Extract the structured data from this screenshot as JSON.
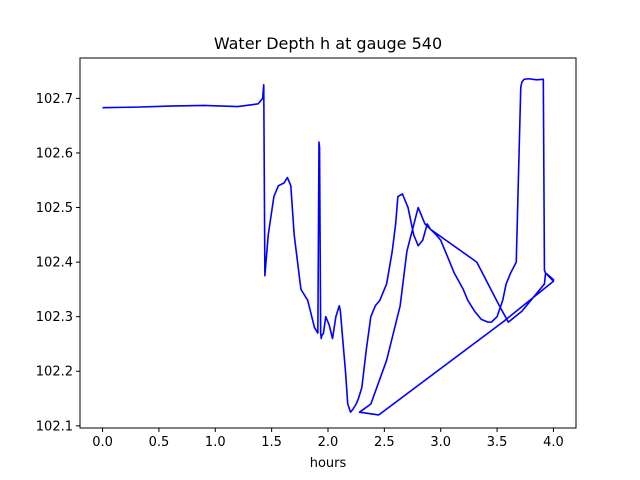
{
  "chart_data": {
    "type": "line",
    "title": "Water Depth h at gauge 540",
    "xlabel": "hours",
    "ylabel": "",
    "xlim": [
      -0.2,
      4.2
    ],
    "ylim": [
      102.096,
      102.774
    ],
    "grid": false,
    "x_ticks": [
      0.0,
      0.5,
      1.0,
      1.5,
      2.0,
      2.5,
      3.0,
      3.5,
      4.0
    ],
    "x_tick_labels": [
      "0.0",
      "0.5",
      "1.0",
      "1.5",
      "2.0",
      "2.5",
      "3.0",
      "3.5",
      "4.0"
    ],
    "y_ticks": [
      102.1,
      102.2,
      102.3,
      102.4,
      102.5,
      102.6,
      102.7
    ],
    "y_tick_labels": [
      "102.1",
      "102.2",
      "102.3",
      "102.4",
      "102.5",
      "102.6",
      "102.7"
    ],
    "series": [
      {
        "color": "#0000ff",
        "x": [
          0.0,
          0.3,
          0.6,
          0.9,
          1.2,
          1.38,
          1.42,
          1.43,
          1.44,
          1.47,
          1.52,
          1.56,
          1.61,
          1.64,
          1.67,
          1.7,
          1.73,
          1.76,
          1.82,
          1.88,
          1.91,
          1.92,
          1.925,
          1.935,
          1.94,
          1.945,
          1.96,
          1.98,
          2.01,
          2.04,
          2.07,
          2.1,
          2.11,
          2.13,
          2.155,
          2.175,
          2.2,
          2.22,
          2.25,
          2.27,
          2.3,
          2.34,
          2.38,
          2.42,
          2.46,
          2.52,
          2.57,
          2.6,
          2.62,
          2.66,
          2.71,
          2.76,
          2.8,
          2.84,
          2.88,
          2.91,
          2.96,
          3.0,
          3.04,
          3.08,
          3.12,
          3.2,
          3.24,
          3.3,
          3.36,
          3.42,
          3.45,
          3.5,
          3.55,
          3.58,
          3.62,
          3.67,
          3.71,
          3.72,
          3.74,
          3.78,
          3.85,
          3.91,
          3.92,
          3.93,
          3.96,
          4.0,
          4.0,
          3.55,
          2.45,
          2.28,
          2.38,
          2.52,
          2.64,
          2.7,
          2.8,
          2.86,
          2.91,
          3.32,
          3.52,
          3.6,
          3.72,
          3.92,
          3.93,
          4.0
        ],
        "y": [
          102.683,
          102.684,
          102.686,
          102.687,
          102.685,
          102.69,
          102.7,
          102.725,
          102.375,
          102.45,
          102.52,
          102.54,
          102.545,
          102.555,
          102.54,
          102.45,
          102.4,
          102.35,
          102.33,
          102.28,
          102.27,
          102.62,
          102.61,
          102.27,
          102.26,
          102.265,
          102.27,
          102.3,
          102.285,
          102.26,
          102.3,
          102.32,
          102.31,
          102.26,
          102.2,
          102.14,
          102.125,
          102.13,
          102.14,
          102.15,
          102.17,
          102.24,
          102.3,
          102.32,
          102.33,
          102.36,
          102.42,
          102.47,
          102.52,
          102.525,
          102.5,
          102.45,
          102.43,
          102.44,
          102.47,
          102.46,
          102.45,
          102.44,
          102.42,
          102.4,
          102.38,
          102.35,
          102.33,
          102.31,
          102.295,
          102.29,
          102.29,
          102.3,
          102.33,
          102.36,
          102.38,
          102.4,
          102.72,
          102.73,
          102.735,
          102.736,
          102.734,
          102.735,
          102.385,
          102.38,
          102.375,
          102.368,
          102.365,
          102.29,
          102.12,
          102.125,
          102.14,
          102.22,
          102.32,
          102.42,
          102.5,
          102.47,
          102.46,
          102.4,
          102.32,
          102.29,
          102.31,
          102.36,
          102.38,
          102.365
        ],
        "name": ""
      }
    ]
  }
}
